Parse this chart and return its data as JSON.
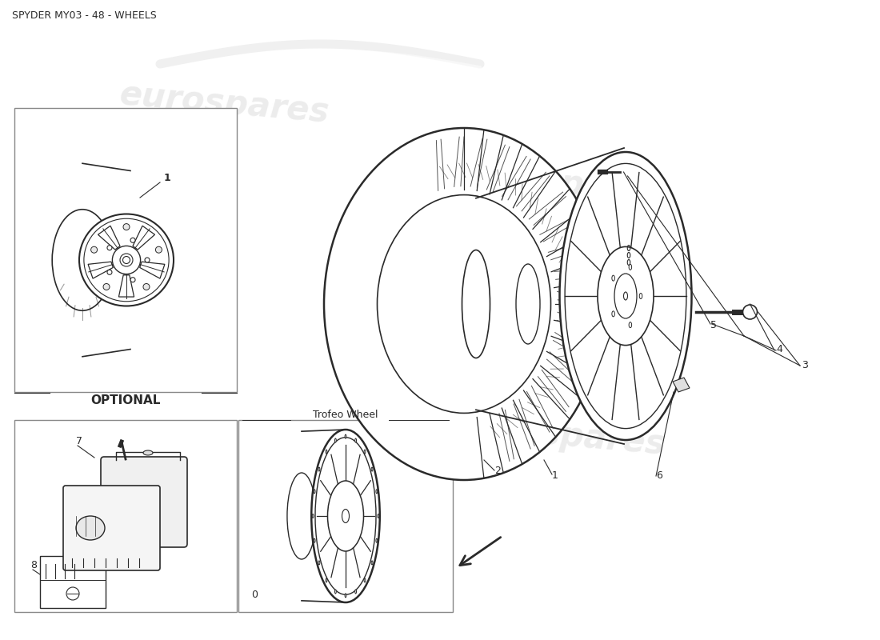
{
  "title": "SPYDER MY03 - 48 - WHEELS",
  "title_fontsize": 9,
  "bg_color": "#ffffff",
  "line_color": "#2a2a2a",
  "watermark_text": "eurospares",
  "watermark_color": "#d0d0d0",
  "optional_label": "OPTIONAL",
  "trofeo_label": "Trofeo Wheel",
  "spoke_count_main": 14,
  "spoke_count_trofeo": 12
}
